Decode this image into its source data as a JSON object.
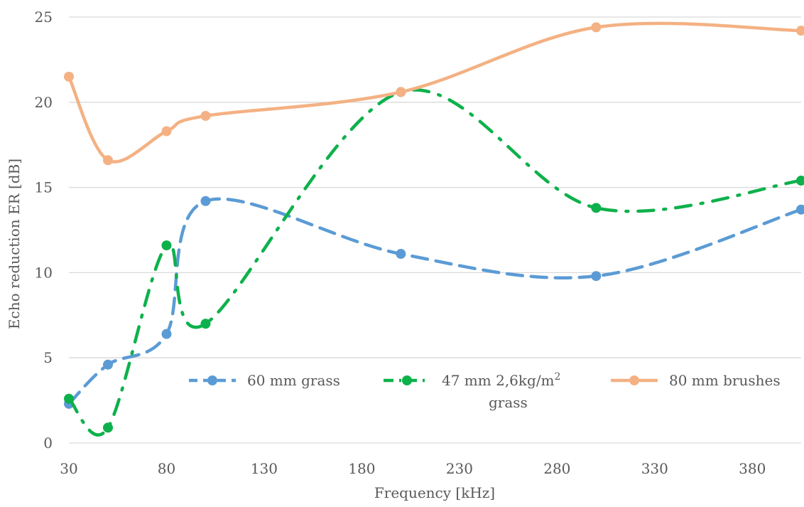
{
  "chart_data": {
    "type": "line",
    "title": "",
    "xlabel": "Frequency [kHz]",
    "ylabel": "Echo reduction ER [dB]",
    "xlim": [
      30,
      405
    ],
    "ylim": [
      0,
      25
    ],
    "x_ticks": [
      "30",
      "80",
      "130",
      "180",
      "230",
      "280",
      "330",
      "380"
    ],
    "y_ticks": [
      "0",
      "5",
      "10",
      "15",
      "20",
      "25"
    ],
    "grid": "horizontal",
    "legend_position": "inside-bottom",
    "series": [
      {
        "name": "60 mm grass",
        "color": "#5b9bd5",
        "dash": "dashed",
        "x": [
          30,
          50,
          80,
          100,
          200,
          300,
          405
        ],
        "y": [
          2.3,
          4.6,
          6.4,
          14.2,
          11.1,
          9.8,
          13.7
        ]
      },
      {
        "name": "47 mm 2,6kg/m",
        "superscript": "2",
        "name_line2": "grass",
        "color": "#0db14b",
        "dash": "dash-dot",
        "x": [
          30,
          50,
          80,
          100,
          200,
          300,
          405
        ],
        "y": [
          2.6,
          0.9,
          11.6,
          7.0,
          20.6,
          13.8,
          15.4
        ]
      },
      {
        "name": "80 mm brushes",
        "color": "#f4b183",
        "dash": "solid",
        "x": [
          30,
          50,
          80,
          100,
          200,
          300,
          405
        ],
        "y": [
          21.5,
          16.6,
          18.3,
          19.2,
          20.6,
          24.4,
          24.2
        ]
      }
    ]
  }
}
